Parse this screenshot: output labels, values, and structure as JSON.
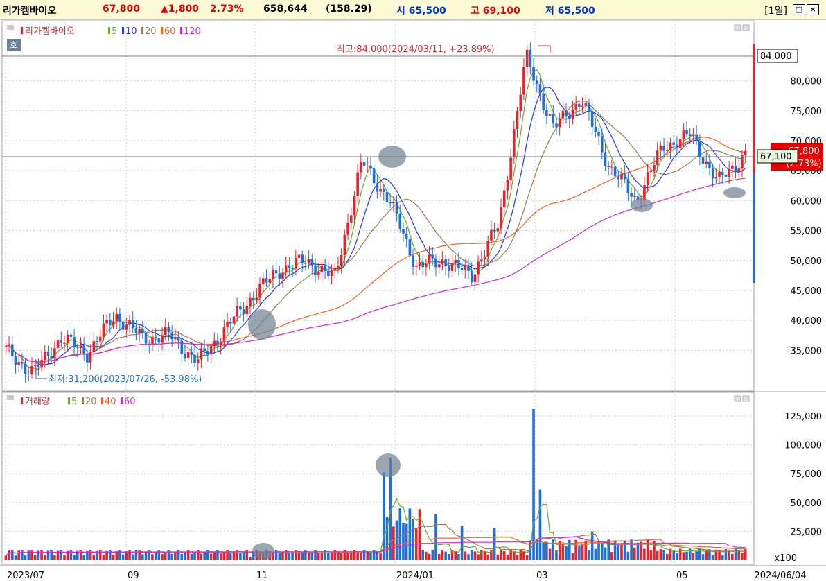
{
  "header": {
    "name": "리가켐바이오",
    "price": "67,800",
    "change": "▲1,800",
    "change_pct": "2.73%",
    "volume": "658,644",
    "volume_ratio": "(158.29)",
    "open": "시 65,500",
    "high": "고 69,100",
    "low": "저 65,500",
    "period": "[1일]",
    "restore_btn": "□",
    "close_btn": "×"
  },
  "price_panel": {
    "legend_title": "리가켐바이오",
    "ma_legend": [
      {
        "label": "5",
        "color": "#66a830"
      },
      {
        "label": "10",
        "color": "#2233ee"
      },
      {
        "label": "20",
        "color": "#9a7a50"
      },
      {
        "label": "60",
        "color": "#ff5a1e"
      },
      {
        "label": "120",
        "color": "#dd22dd"
      }
    ],
    "badge": "호",
    "high_annotation": "최고:84,000(2024/03/11, +23.89%)",
    "low_annotation": "최저:31,200(2023/07/26, -53.98%)",
    "high_box": "84,000",
    "current_box": "67,100",
    "last_box_1": "67,800",
    "last_box_2": "(2.73%)"
  },
  "volume_panel": {
    "legend_title": "거래량",
    "ma_legend": [
      {
        "label": "5",
        "color": "#66a830"
      },
      {
        "label": "20",
        "color": "#9a7a50"
      },
      {
        "label": "40",
        "color": "#ff5a1e"
      },
      {
        "label": "60",
        "color": "#dd22dd"
      }
    ],
    "unit": "x100"
  },
  "colors": {
    "up": "#e8222a",
    "down": "#1f6fd8",
    "ma5": "#66a830",
    "ma10": "#2233ee",
    "ma20": "#9a7a50",
    "ma60": "#ff5a1e",
    "ma120": "#dd22dd"
  },
  "chart_data": [
    {
      "type": "candlestick",
      "title": "리가켐바이오",
      "y_ticks": [
        "35,000",
        "40,000",
        "45,000",
        "50,000",
        "55,000",
        "60,000",
        "65,000",
        "70,000",
        "75,000",
        "80,000"
      ],
      "ylim": [
        31000,
        86000
      ],
      "x_ticks": [
        "2023/07",
        "09",
        "11",
        "2024/01",
        "03",
        "05",
        "2024/06/04"
      ],
      "series": [
        {
          "name": "price",
          "points": [
            [
              "2023/07",
              35000
            ],
            [
              "2023/07",
              31200
            ],
            [
              "2023/08",
              37000
            ],
            [
              "2023/08",
              34500
            ],
            [
              "2023/09",
              41000
            ],
            [
              "2023/09",
              37000
            ],
            [
              "2023/10",
              37500
            ],
            [
              "2023/10",
              33000
            ],
            [
              "2023/11",
              38500
            ],
            [
              "2023/11",
              44000
            ],
            [
              "2023/11",
              48500
            ],
            [
              "2023/12",
              50000
            ],
            [
              "2023/12",
              47000
            ],
            [
              "2023/12",
              66500
            ],
            [
              "2024/01",
              60000
            ],
            [
              "2024/01",
              49000
            ],
            [
              "2024/02",
              50000
            ],
            [
              "2024/02",
              47500
            ],
            [
              "2024/02",
              56000
            ],
            [
              "2024/03",
              84000
            ],
            [
              "2024/03",
              72000
            ],
            [
              "2024/03",
              77000
            ],
            [
              "2024/04",
              66000
            ],
            [
              "2024/04",
              60000
            ],
            [
              "2024/05",
              69000
            ],
            [
              "2024/05",
              71000
            ],
            [
              "2024/05",
              63000
            ],
            [
              "2024/06",
              67800
            ]
          ]
        },
        {
          "name": "5",
          "values": []
        },
        {
          "name": "10",
          "values": []
        },
        {
          "name": "20",
          "values": []
        },
        {
          "name": "60",
          "values": []
        },
        {
          "name": "120",
          "values": []
        }
      ]
    },
    {
      "type": "bar",
      "title": "거래량",
      "y_ticks": [
        "25,000",
        "50,000",
        "75,000",
        "100,000",
        "125,000"
      ],
      "ylim": [
        0,
        135000
      ],
      "unit": "x100",
      "series": [
        {
          "name": "volume",
          "points": [
            [
              "2023/09",
              9000
            ],
            [
              "2023/11",
              3000
            ],
            [
              "2023/12",
              76000
            ],
            [
              "2023/12",
              89000
            ],
            [
              "2024/01",
              40000
            ],
            [
              "2024/01",
              30000
            ],
            [
              "2024/02",
              28000
            ],
            [
              "2024/03",
              131000
            ],
            [
              "2024/03",
              61000
            ],
            [
              "2024/04",
              25000
            ],
            [
              "2024/05",
              8000
            ],
            [
              "2024/06",
              6586
            ]
          ]
        }
      ]
    }
  ]
}
